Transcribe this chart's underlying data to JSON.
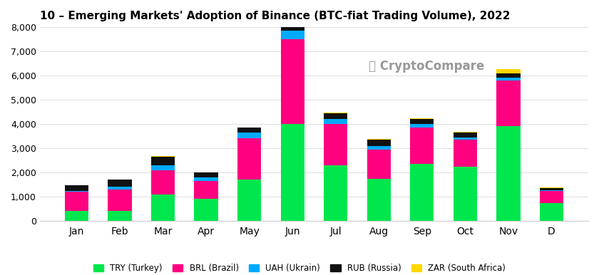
{
  "title": "10 – Emerging Markets' Adoption of Binance (BTC-fiat Trading Volume), 2022",
  "months": [
    "Jan",
    "Feb",
    "Mar",
    "Apr",
    "May",
    "Jun",
    "Jul",
    "Aug",
    "Sep",
    "Oct",
    "Nov",
    "D"
  ],
  "series": {
    "TRY (Turkey)": {
      "color": "#00e64d",
      "values": [
        400,
        400,
        1100,
        900,
        1700,
        4000,
        2300,
        1750,
        2350,
        2250,
        3900,
        750
      ]
    },
    "BRL (Brazil)": {
      "color": "#ff0080",
      "values": [
        800,
        900,
        1000,
        750,
        1700,
        3500,
        1700,
        1200,
        1500,
        1100,
        1900,
        500
      ]
    },
    "UAH (Ukrain)": {
      "color": "#00aaff",
      "values": [
        50,
        100,
        200,
        150,
        250,
        350,
        200,
        150,
        150,
        100,
        100,
        30
      ]
    },
    "RUB (Russia)": {
      "color": "#111111",
      "values": [
        220,
        300,
        350,
        200,
        200,
        200,
        250,
        250,
        200,
        200,
        200,
        80
      ]
    },
    "ZAR (South Africa)": {
      "color": "#ffd700",
      "values": [
        15,
        15,
        15,
        15,
        15,
        50,
        30,
        30,
        30,
        30,
        180,
        15
      ]
    }
  },
  "ylim": [
    0,
    8000
  ],
  "yticks": [
    0,
    1000,
    2000,
    3000,
    4000,
    5000,
    6000,
    7000,
    8000
  ],
  "background_color": "#ffffff",
  "title_fontsize": 11,
  "bar_width": 0.55,
  "figsize": [
    8.4,
    3.86
  ],
  "dpi": 100
}
